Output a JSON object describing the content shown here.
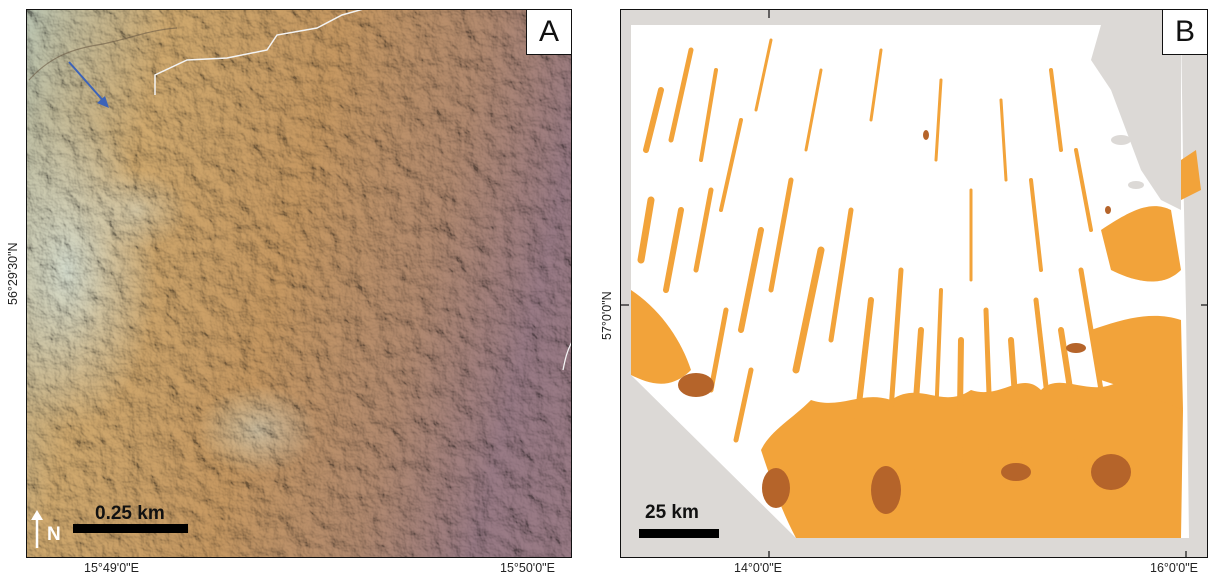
{
  "panel_a": {
    "label": "A",
    "lat_label": "56°29'30\"N",
    "lon_labels": [
      "15°49'0\"E",
      "15°50'0\"E"
    ],
    "scale_label": "0.25 km",
    "north_label": "N",
    "colors": {
      "high": "#c9d6c8",
      "mid": "#cfa56a",
      "low": "#9f7d86"
    }
  },
  "panel_b": {
    "label": "B",
    "lat_label": "57°0'0\"N",
    "lon_labels": [
      "14°0'0\"E",
      "16°0'0\"E"
    ],
    "scale_label": "25 km",
    "colors": {
      "orange": "#f2a33a",
      "brown": "#b5642a",
      "background": "#dcd9d6",
      "land": "#ffffff"
    }
  }
}
